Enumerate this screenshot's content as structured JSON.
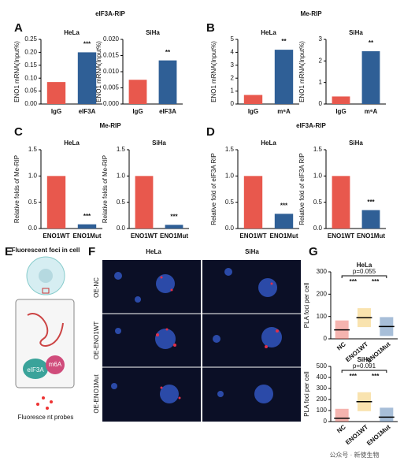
{
  "figure": {
    "panel_letters": [
      "A",
      "B",
      "C",
      "D",
      "E",
      "F",
      "G"
    ],
    "group_titles": [
      "eIF3A-RIP",
      "Me-RIP",
      "Me-RIP",
      "eIF3A-RIP"
    ],
    "diagram": {
      "title": "Fluorescent foci in cell",
      "protein": "eIF3A",
      "mark": "m6A",
      "probes": "Fluoresce nt probes"
    },
    "micrographs": {
      "columns": [
        "HeLa",
        "SiHa"
      ],
      "rows": [
        "OE-NC",
        "OE-ENO1WT",
        "OE-ENO1Mut"
      ]
    },
    "watermark": "公众号 · 新使生物"
  },
  "chart_data": [
    {
      "type": "bar",
      "title": "HeLa",
      "y_label": "ENO1 mRNA(Input%)",
      "categories": [
        "IgG",
        "eIF3A"
      ],
      "values": [
        0.085,
        0.2
      ],
      "colors": [
        "#e8584d",
        "#2f5f96"
      ],
      "ylim": [
        0,
        0.25
      ],
      "yticks": [
        {
          "value": 0,
          "label": "0.00"
        },
        0.05,
        {
          "value": 0.1,
          "label": "0.10"
        },
        0.15,
        {
          "value": 0.2,
          "label": "0.20"
        },
        0.25
      ],
      "annotations": [
        "***"
      ]
    },
    {
      "type": "bar",
      "title": "SiHa",
      "y_label": "ENO1 mRNA(Input%)",
      "categories": [
        "IgG",
        "eIF3A"
      ],
      "values": [
        0.0075,
        0.0135
      ],
      "colors": [
        "#e8584d",
        "#2f5f96"
      ],
      "ylim": [
        0,
        0.02
      ],
      "yticks": [
        {
          "value": 0,
          "label": "0.000"
        },
        0.005,
        {
          "value": 0.01,
          "label": "0.010"
        },
        0.015,
        {
          "value": 0.02,
          "label": "0.020"
        }
      ],
      "annotations": [
        "**"
      ]
    },
    {
      "type": "bar",
      "title": "HeLa",
      "y_label": "ENO1 mRNA(Input%)",
      "categories": [
        "IgG",
        "m⁶A"
      ],
      "values": [
        0.7,
        4.2
      ],
      "colors": [
        "#e8584d",
        "#2f5f96"
      ],
      "ylim": [
        0,
        5
      ],
      "yticks": [
        0,
        1,
        2,
        3,
        4,
        5
      ],
      "annotations": [
        "**"
      ]
    },
    {
      "type": "bar",
      "title": "SiHa",
      "y_label": "ENO1 mRNA(Input%)",
      "categories": [
        "IgG",
        "m⁶A"
      ],
      "values": [
        0.35,
        2.45
      ],
      "colors": [
        "#e8584d",
        "#2f5f96"
      ],
      "ylim": [
        0,
        3
      ],
      "yticks": [
        0,
        1,
        2,
        3
      ],
      "annotations": [
        "**"
      ]
    },
    {
      "type": "bar",
      "title": "HeLa",
      "y_label": "Relative folds of Me-RIP",
      "categories": [
        "ENO1WT",
        "ENO1Mut"
      ],
      "values": [
        1.0,
        0.08
      ],
      "colors": [
        "#e8584d",
        "#2f5f96"
      ],
      "ylim": [
        0,
        1.5
      ],
      "yticks": [
        {
          "value": 0,
          "label": "0.0"
        },
        0.5,
        {
          "value": 1,
          "label": "1.0"
        },
        1.5
      ],
      "annotations": [
        "***"
      ]
    },
    {
      "type": "bar",
      "title": "SiHa",
      "y_label": "Relative folds of Me-RIP",
      "categories": [
        "ENO1WT",
        "ENO1Mut"
      ],
      "values": [
        1.0,
        0.07
      ],
      "colors": [
        "#e8584d",
        "#2f5f96"
      ],
      "ylim": [
        0,
        1.5
      ],
      "yticks": [
        {
          "value": 0,
          "label": "0.0"
        },
        0.5,
        {
          "value": 1,
          "label": "1.0"
        },
        1.5
      ],
      "annotations": [
        "***"
      ]
    },
    {
      "type": "bar",
      "title": "HeLa",
      "y_label": "Relative fold of eIF3A RIP",
      "categories": [
        "ENO1WT",
        "ENO1Mut"
      ],
      "values": [
        1.0,
        0.28
      ],
      "colors": [
        "#e8584d",
        "#2f5f96"
      ],
      "ylim": [
        0,
        1.5
      ],
      "yticks": [
        {
          "value": 0,
          "label": "0.0"
        },
        0.5,
        {
          "value": 1,
          "label": "1.0"
        },
        1.5
      ],
      "annotations": [
        "***"
      ]
    },
    {
      "type": "bar",
      "title": "SiHa",
      "y_label": "Relative fold of eIF3A RIP",
      "categories": [
        "ENO1WT",
        "ENO1Mut"
      ],
      "values": [
        1.0,
        0.35
      ],
      "colors": [
        "#e8584d",
        "#2f5f96"
      ],
      "ylim": [
        0,
        1.5
      ],
      "yticks": [
        {
          "value": 0,
          "label": "0.0"
        },
        0.5,
        {
          "value": 1,
          "label": "1.0"
        },
        1.5
      ],
      "annotations": [
        "***"
      ]
    },
    {
      "type": "dot",
      "title": "HeLa",
      "y_label": "PLA foci per cell",
      "categories": [
        "NC",
        "ENO1WT",
        "ENO1Mut"
      ],
      "values": [
        40,
        95,
        55
      ],
      "colors": [
        "#e8584d",
        "#f2c14e",
        "#3b6ea8"
      ],
      "ylim": [
        0,
        300
      ],
      "yticks": [
        0,
        100,
        200,
        300
      ],
      "annotations": [
        "p=0.055",
        "***",
        "***"
      ]
    },
    {
      "type": "dot",
      "title": "SiHa",
      "y_label": "PLA foci per cell",
      "categories": [
        "NC",
        "ENO1WT",
        "ENO1Mut"
      ],
      "values": [
        30,
        180,
        40
      ],
      "colors": [
        "#e8584d",
        "#f2c14e",
        "#3b6ea8"
      ],
      "ylim": [
        0,
        500
      ],
      "yticks": [
        0,
        100,
        200,
        300,
        400,
        500
      ],
      "annotations": [
        "p=0.091",
        "***",
        "***"
      ]
    }
  ]
}
